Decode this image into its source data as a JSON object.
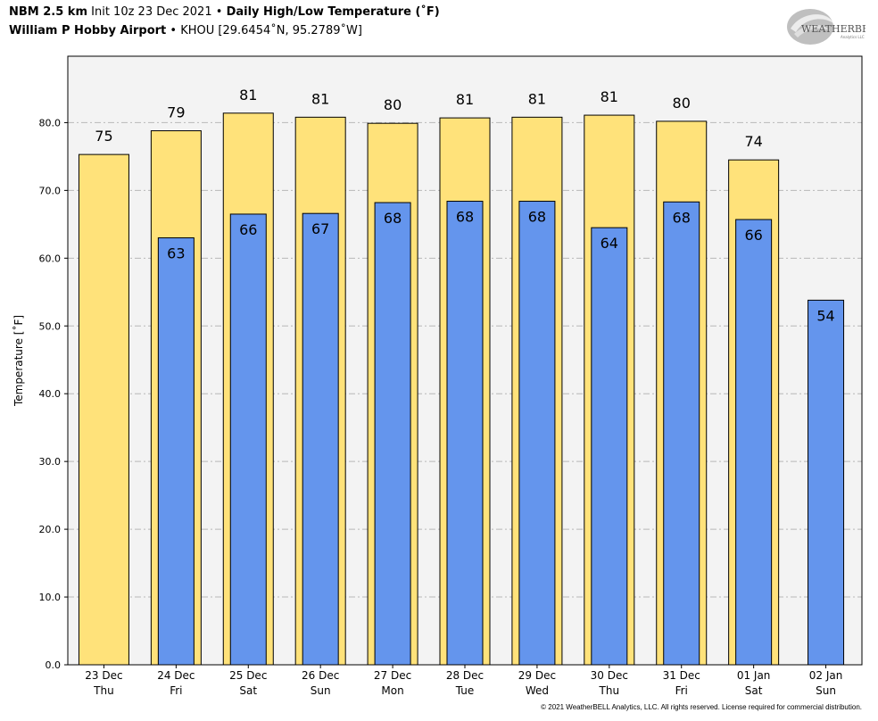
{
  "header": {
    "model": "NBM 2.5 km",
    "init": "Init 10z 23 Dec 2021",
    "bullet": "•",
    "product": "Daily High/Low Temperature (˚F)",
    "station_name": "William P Hobby Airport",
    "station_info": "KHOU [29.6454˚N, 95.2789˚W]"
  },
  "logo": {
    "text": "WEATHERBELL",
    "subtext": "Analytics LLC"
  },
  "footer": "© 2021 WeatherBELL Analytics, LLC. All rights reserved. License required for commercial distribution.",
  "colors": {
    "high": "#ffe27a",
    "low": "#6495ed",
    "plot_bg": "#f3f3f3",
    "grid": "#b8b8b8"
  },
  "chart_data": {
    "type": "bar",
    "ylabel": "Temperature [˚F]",
    "ylim": [
      0,
      89.8
    ],
    "yticks": [
      "0.0",
      "10.0",
      "20.0",
      "30.0",
      "40.0",
      "50.0",
      "60.0",
      "70.0",
      "80.0"
    ],
    "grid": true,
    "categories": [
      {
        "date": "23 Dec",
        "day": "Thu"
      },
      {
        "date": "24 Dec",
        "day": "Fri"
      },
      {
        "date": "25 Dec",
        "day": "Sat"
      },
      {
        "date": "26 Dec",
        "day": "Sun"
      },
      {
        "date": "27 Dec",
        "day": "Mon"
      },
      {
        "date": "28 Dec",
        "day": "Tue"
      },
      {
        "date": "29 Dec",
        "day": "Wed"
      },
      {
        "date": "30 Dec",
        "day": "Thu"
      },
      {
        "date": "31 Dec",
        "day": "Fri"
      },
      {
        "date": "01 Jan",
        "day": "Sat"
      },
      {
        "date": "02 Jan",
        "day": "Sun"
      }
    ],
    "series": [
      {
        "key": "high",
        "values": [
          75.3,
          78.8,
          81.4,
          80.8,
          79.9,
          80.7,
          80.8,
          81.1,
          80.2,
          74.5,
          null
        ],
        "labels": [
          "75",
          "79",
          "81",
          "81",
          "80",
          "81",
          "81",
          "81",
          "80",
          "74",
          ""
        ]
      },
      {
        "key": "low",
        "values": [
          null,
          63.0,
          66.5,
          66.6,
          68.2,
          68.4,
          68.4,
          64.5,
          68.3,
          65.7,
          53.8
        ],
        "labels": [
          "",
          "63",
          "66",
          "67",
          "68",
          "68",
          "68",
          "64",
          "68",
          "66",
          "54"
        ]
      }
    ]
  }
}
